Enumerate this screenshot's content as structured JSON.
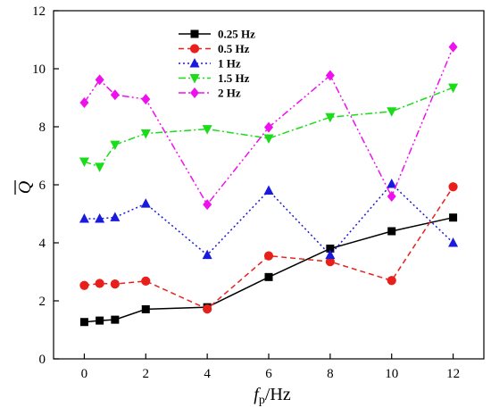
{
  "chart_data": {
    "type": "line",
    "xlabel_main": "f",
    "xlabel_sub": "p",
    "xlabel_unit": "/Hz",
    "ylabel": "Q",
    "xlim": [
      -1,
      13
    ],
    "ylim": [
      0,
      12
    ],
    "xticks": [
      0,
      2,
      4,
      6,
      8,
      10,
      12
    ],
    "yticks": [
      0,
      2,
      4,
      6,
      8,
      10,
      12
    ],
    "legend_position": "top-left",
    "series": [
      {
        "name": "0.25 Hz",
        "color": "#000000",
        "marker": "square",
        "dash": "solid",
        "x": [
          0,
          0.5,
          1,
          2,
          4,
          6,
          8,
          10,
          12
        ],
        "y": [
          1.27,
          1.32,
          1.35,
          1.71,
          1.78,
          2.82,
          3.8,
          4.4,
          4.87
        ]
      },
      {
        "name": "0.5 Hz",
        "color": "#e8201c",
        "marker": "circle",
        "dash": "dash",
        "x": [
          0,
          0.5,
          1,
          2,
          4,
          6,
          8,
          10,
          12
        ],
        "y": [
          2.53,
          2.6,
          2.58,
          2.68,
          1.72,
          3.55,
          3.35,
          2.7,
          5.93
        ]
      },
      {
        "name": "1 Hz",
        "color": "#1a1adc",
        "marker": "triangle-up",
        "dash": "dot",
        "x": [
          0,
          0.5,
          1,
          2,
          4,
          6,
          8,
          10,
          12
        ],
        "y": [
          4.83,
          4.83,
          4.88,
          5.35,
          3.58,
          5.8,
          3.58,
          6.03,
          4.0
        ]
      },
      {
        "name": "1.5 Hz",
        "color": "#1adc1a",
        "marker": "triangle-down",
        "dash": "dashdot",
        "x": [
          0,
          0.5,
          1,
          2,
          4,
          6,
          8,
          10,
          12
        ],
        "y": [
          6.8,
          6.62,
          7.38,
          7.77,
          7.92,
          7.6,
          8.33,
          8.53,
          9.35
        ]
      },
      {
        "name": "2 Hz",
        "color": "#ee11ee",
        "marker": "diamond",
        "dash": "dashdotdot",
        "x": [
          0,
          0.5,
          1,
          2,
          4,
          6,
          8,
          10,
          12
        ],
        "y": [
          8.83,
          9.62,
          9.1,
          8.95,
          5.32,
          7.98,
          9.77,
          5.6,
          10.75
        ]
      }
    ]
  }
}
